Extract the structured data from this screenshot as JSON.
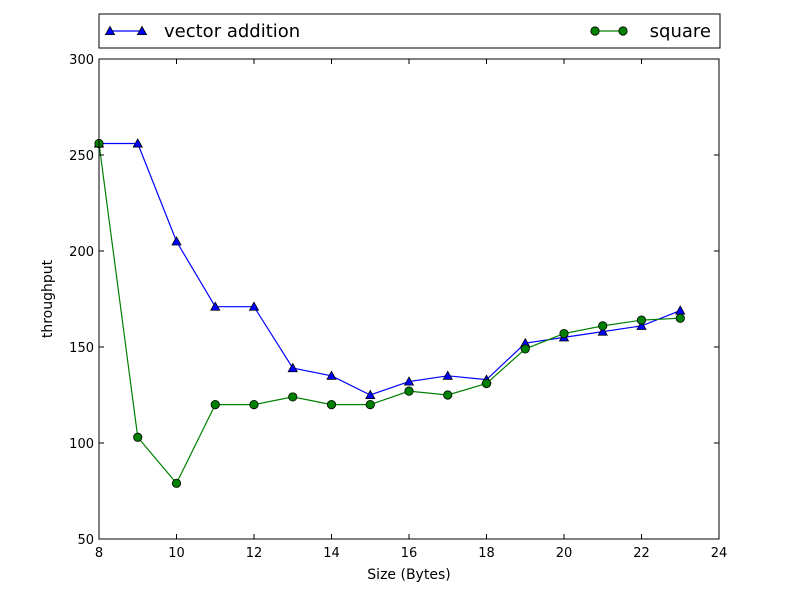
{
  "chart_data": {
    "type": "line",
    "title": "",
    "xlabel": "Size (Bytes)",
    "ylabel": "throughput",
    "xlim": [
      8,
      24
    ],
    "ylim": [
      50,
      300
    ],
    "xticks": [
      8,
      10,
      12,
      14,
      16,
      18,
      20,
      22,
      24
    ],
    "yticks": [
      50,
      100,
      150,
      200,
      250,
      300
    ],
    "grid": false,
    "legend_position": "top",
    "series": [
      {
        "name": "vector addition",
        "color": "#0000ff",
        "marker": "triangle",
        "x": [
          8,
          9,
          10,
          11,
          12,
          13,
          14,
          15,
          16,
          17,
          18,
          19,
          20,
          21,
          22,
          23
        ],
        "y": [
          256,
          256,
          205,
          171,
          171,
          139,
          135,
          125,
          132,
          135,
          133,
          152,
          155,
          158,
          161,
          169
        ]
      },
      {
        "name": "square",
        "color": "#008000",
        "marker": "circle",
        "x": [
          8,
          9,
          10,
          11,
          12,
          13,
          14,
          15,
          16,
          17,
          18,
          19,
          20,
          21,
          22,
          23
        ],
        "y": [
          256,
          103,
          79,
          120,
          120,
          124,
          120,
          120,
          127,
          125,
          131,
          149,
          157,
          161,
          164,
          165
        ]
      }
    ]
  }
}
